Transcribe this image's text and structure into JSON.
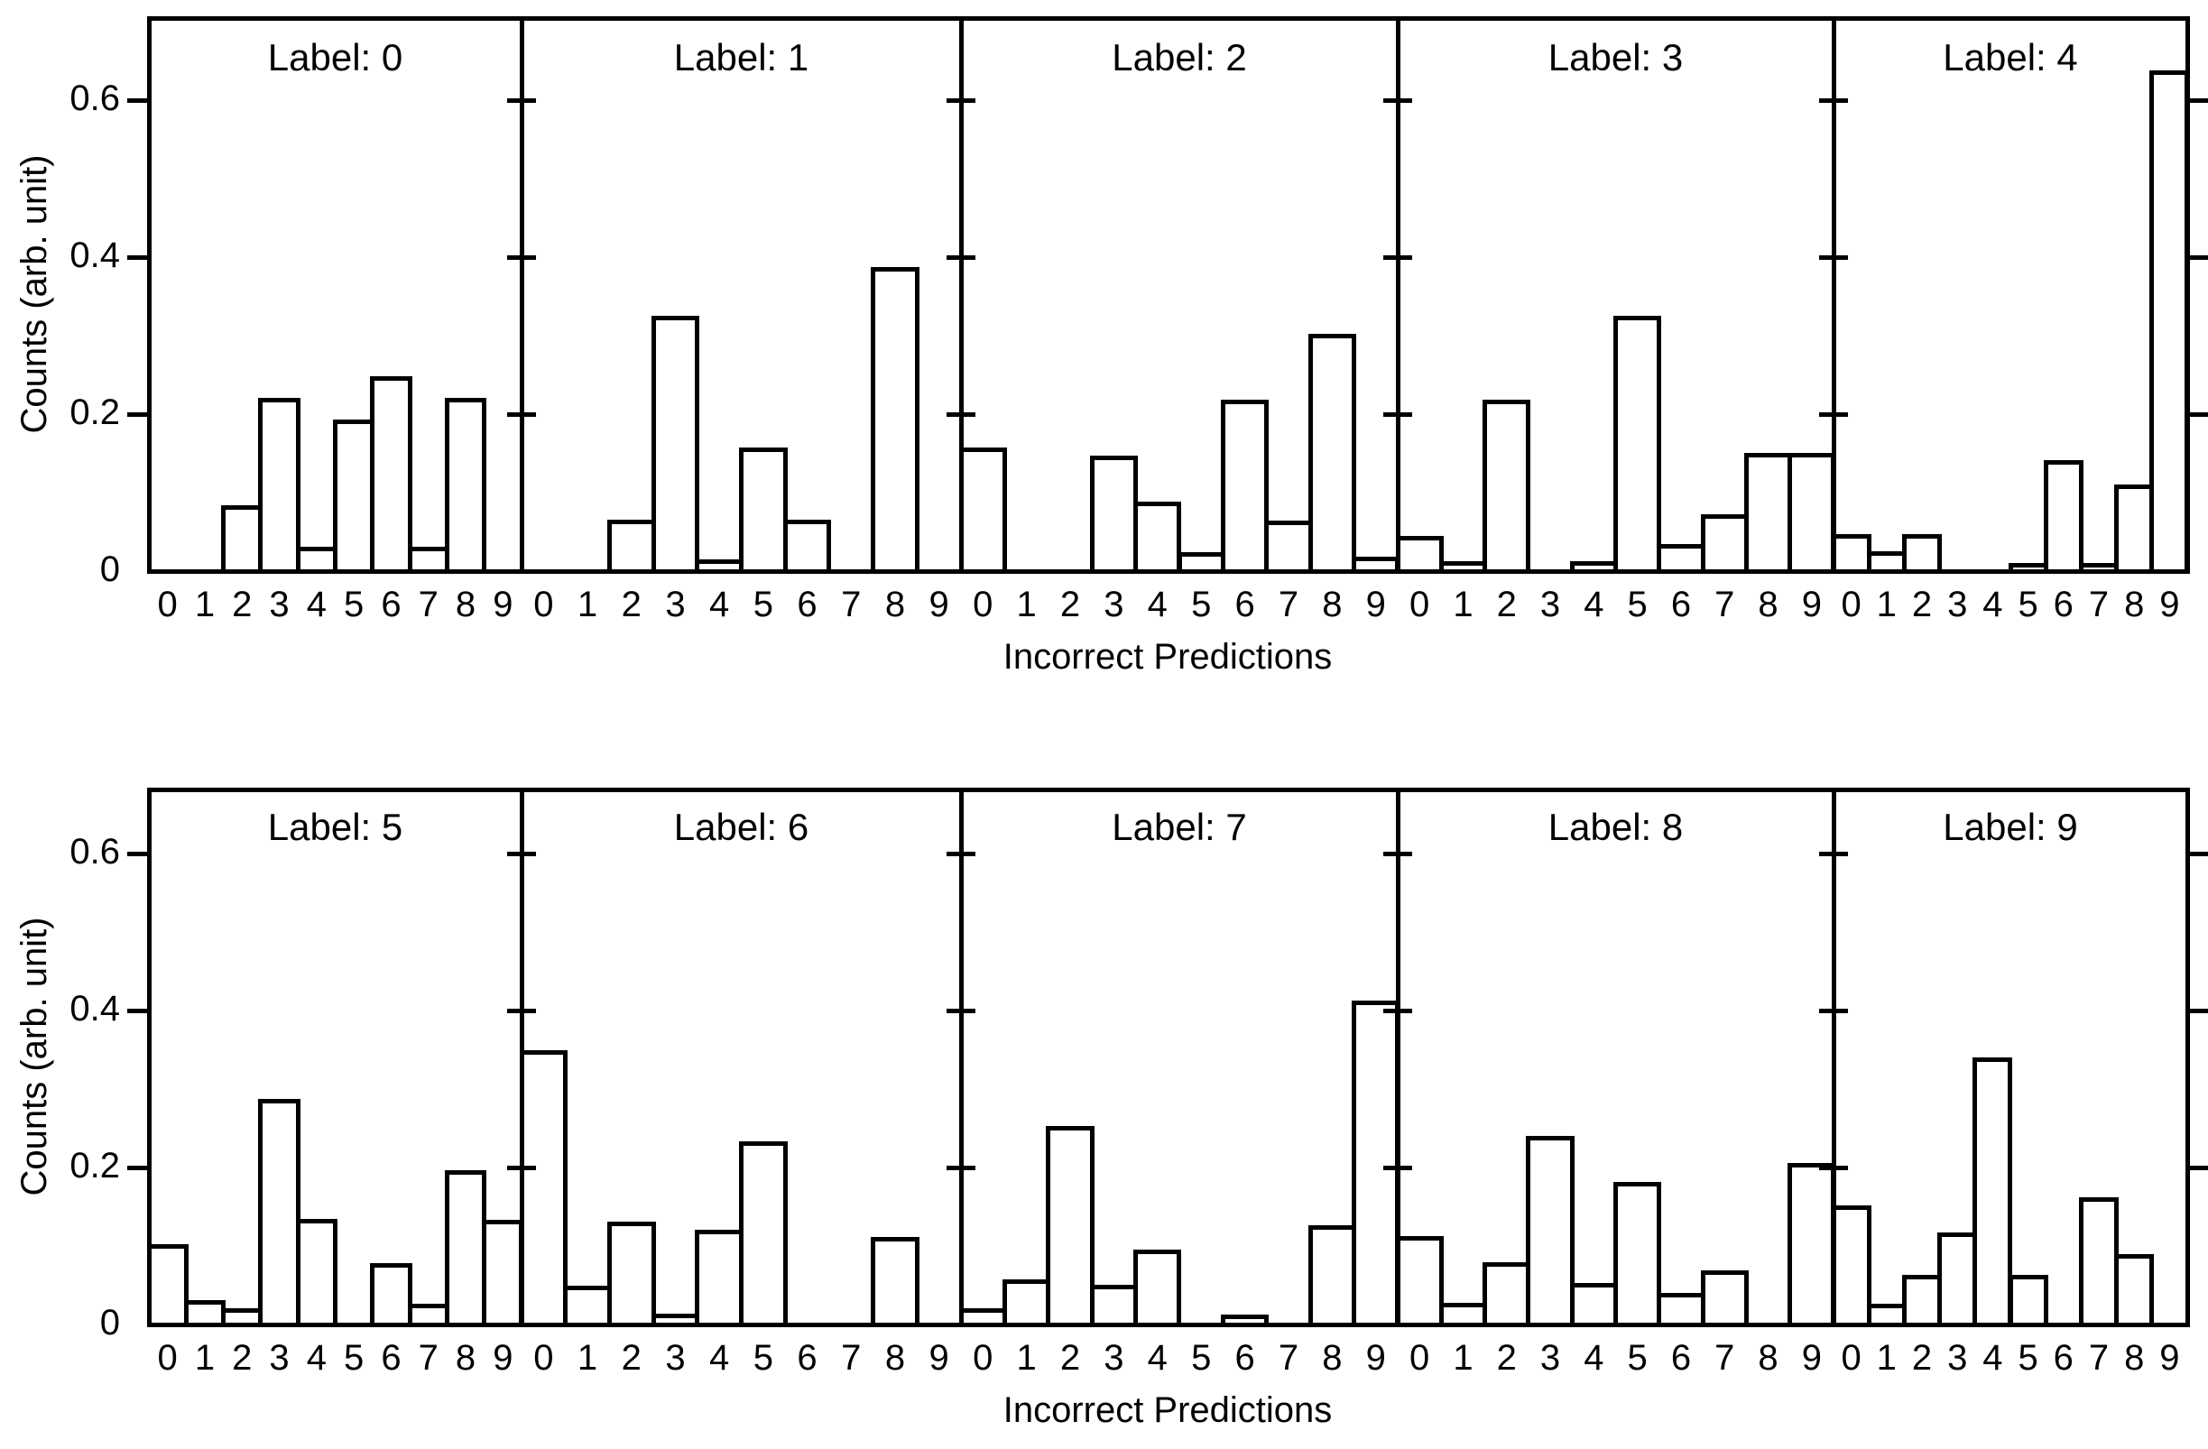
{
  "figure": {
    "background": "#ffffff",
    "line_color": "#000000",
    "bar_fill": "#ffffff",
    "y_axis_label": "Counts (arb. unit)",
    "x_axis_label": "Incorrect Predictions",
    "y_tick_labels": [
      "0",
      "0.2",
      "0.4",
      "0.6"
    ],
    "y_tick_values": [
      0,
      0.2,
      0.4,
      0.6
    ],
    "x_tick_labels": [
      "0",
      "1",
      "2",
      "3",
      "4",
      "5",
      "6",
      "7",
      "8",
      "9"
    ]
  },
  "chart_data": [
    {
      "type": "bar",
      "title": "Label: 0",
      "row": 0,
      "col": 0,
      "xlabel": "Incorrect Predictions",
      "ylabel": "Counts (arb. unit)",
      "ylim": [
        0,
        0.705
      ],
      "grid": false,
      "legend": "none",
      "categories": [
        "0",
        "1",
        "2",
        "3",
        "4",
        "5",
        "6",
        "7",
        "8",
        "9"
      ],
      "values": [
        0,
        0,
        0.081,
        0.218,
        0.028,
        0.19,
        0.245,
        0.028,
        0.218,
        0
      ]
    },
    {
      "type": "bar",
      "title": "Label: 1",
      "row": 0,
      "col": 1,
      "xlabel": "Incorrect Predictions",
      "ylabel": "Counts (arb. unit)",
      "ylim": [
        0,
        0.705
      ],
      "grid": false,
      "legend": "none",
      "categories": [
        "0",
        "1",
        "2",
        "3",
        "4",
        "5",
        "6",
        "7",
        "8",
        "9"
      ],
      "values": [
        0,
        0,
        0.063,
        0.322,
        0.012,
        0.155,
        0.063,
        0,
        0.385,
        0
      ]
    },
    {
      "type": "bar",
      "title": "Label: 2",
      "row": 0,
      "col": 2,
      "xlabel": "Incorrect Predictions",
      "ylabel": "Counts (arb. unit)",
      "ylim": [
        0,
        0.705
      ],
      "grid": false,
      "legend": "none",
      "categories": [
        "0",
        "1",
        "2",
        "3",
        "4",
        "5",
        "6",
        "7",
        "8",
        "9"
      ],
      "values": [
        0.155,
        0,
        0,
        0.144,
        0.086,
        0.021,
        0.216,
        0.061,
        0.3,
        0.016
      ]
    },
    {
      "type": "bar",
      "title": "Label: 3",
      "row": 0,
      "col": 3,
      "xlabel": "Incorrect Predictions",
      "ylabel": "Counts (arb. unit)",
      "ylim": [
        0,
        0.705
      ],
      "grid": false,
      "legend": "none",
      "categories": [
        "0",
        "1",
        "2",
        "3",
        "4",
        "5",
        "6",
        "7",
        "8",
        "9"
      ],
      "values": [
        0.042,
        0.01,
        0.216,
        0,
        0.01,
        0.322,
        0.032,
        0.07,
        0.148,
        0.148
      ]
    },
    {
      "type": "bar",
      "title": "Label: 4",
      "row": 0,
      "col": 4,
      "xlabel": "Incorrect Predictions",
      "ylabel": "Counts (arb. unit)",
      "ylim": [
        0,
        0.705
      ],
      "grid": false,
      "legend": "none",
      "categories": [
        "0",
        "1",
        "2",
        "3",
        "4",
        "5",
        "6",
        "7",
        "8",
        "9"
      ],
      "values": [
        0.044,
        0.022,
        0.044,
        0,
        0,
        0.008,
        0.138,
        0.008,
        0.108,
        0.635
      ]
    },
    {
      "type": "bar",
      "title": "Label: 5",
      "row": 1,
      "col": 0,
      "xlabel": "Incorrect Predictions",
      "ylabel": "Counts (arb. unit)",
      "ylim": [
        0,
        0.682
      ],
      "grid": false,
      "legend": "none",
      "categories": [
        "0",
        "1",
        "2",
        "3",
        "4",
        "5",
        "6",
        "7",
        "8",
        "9"
      ],
      "values": [
        0.1,
        0.028,
        0.018,
        0.284,
        0.132,
        0,
        0.075,
        0.023,
        0.194,
        0.13
      ]
    },
    {
      "type": "bar",
      "title": "Label: 6",
      "row": 1,
      "col": 1,
      "xlabel": "Incorrect Predictions",
      "ylabel": "Counts (arb. unit)",
      "ylim": [
        0,
        0.682
      ],
      "grid": false,
      "legend": "none",
      "categories": [
        "0",
        "1",
        "2",
        "3",
        "4",
        "5",
        "6",
        "7",
        "8",
        "9"
      ],
      "values": [
        0.347,
        0.047,
        0.128,
        0.011,
        0.118,
        0.23,
        0,
        0,
        0.109,
        0
      ]
    },
    {
      "type": "bar",
      "title": "Label: 7",
      "row": 1,
      "col": 2,
      "xlabel": "Incorrect Predictions",
      "ylabel": "Counts (arb. unit)",
      "ylim": [
        0,
        0.682
      ],
      "grid": false,
      "legend": "none",
      "categories": [
        "0",
        "1",
        "2",
        "3",
        "4",
        "5",
        "6",
        "7",
        "8",
        "9"
      ],
      "values": [
        0.018,
        0.055,
        0.25,
        0.048,
        0.092,
        0,
        0.01,
        0,
        0.124,
        0.41
      ]
    },
    {
      "type": "bar",
      "title": "Label: 8",
      "row": 1,
      "col": 3,
      "xlabel": "Incorrect Predictions",
      "ylabel": "Counts (arb. unit)",
      "ylim": [
        0,
        0.682
      ],
      "grid": false,
      "legend": "none",
      "categories": [
        "0",
        "1",
        "2",
        "3",
        "4",
        "5",
        "6",
        "7",
        "8",
        "9"
      ],
      "values": [
        0.11,
        0.025,
        0.077,
        0.237,
        0.05,
        0.179,
        0.037,
        0.066,
        0,
        0.203
      ]
    },
    {
      "type": "bar",
      "title": "Label: 9",
      "row": 1,
      "col": 4,
      "xlabel": "Incorrect Predictions",
      "ylabel": "Counts (arb. unit)",
      "ylim": [
        0,
        0.682
      ],
      "grid": false,
      "legend": "none",
      "categories": [
        "0",
        "1",
        "2",
        "3",
        "4",
        "5",
        "6",
        "7",
        "8",
        "9"
      ],
      "values": [
        0.149,
        0.024,
        0.06,
        0.114,
        0.337,
        0.06,
        0,
        0.159,
        0.087,
        0
      ]
    }
  ]
}
